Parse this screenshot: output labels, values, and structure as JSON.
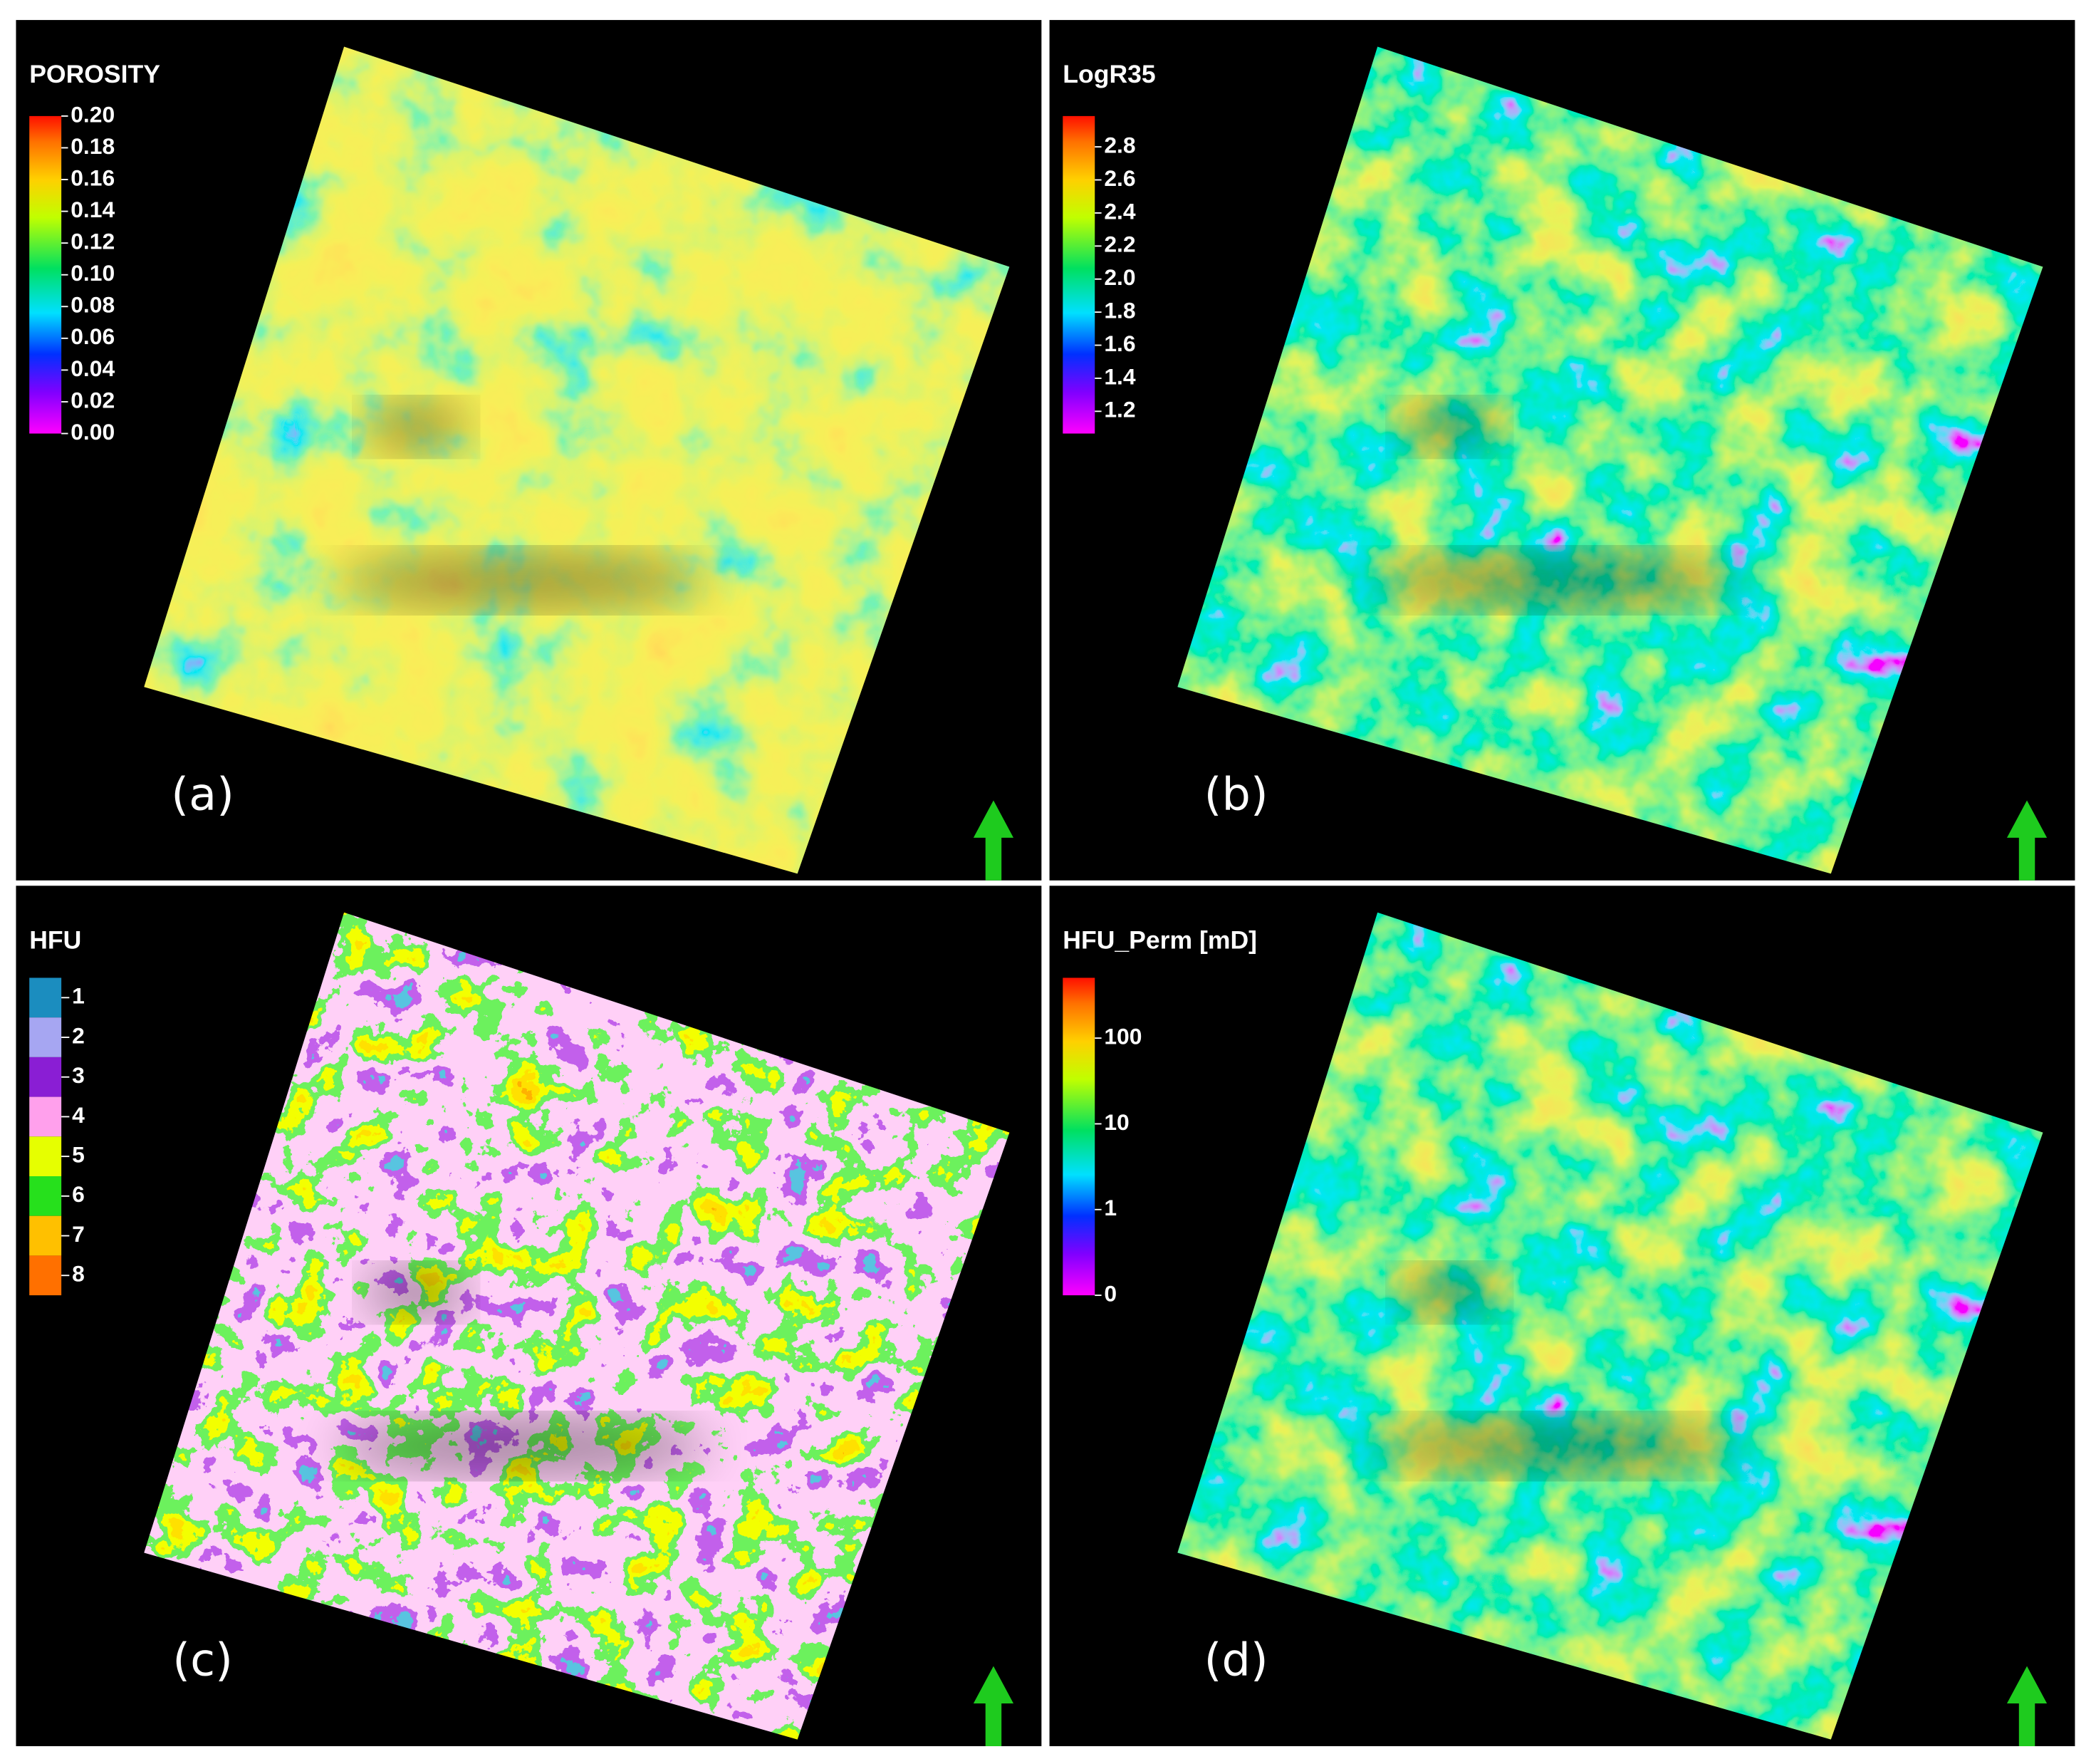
{
  "panels": [
    {
      "title": "POROSITY",
      "label": "(a)",
      "ticks": [
        "0.20",
        "0.18",
        "0.16",
        "0.14",
        "0.12",
        "0.10",
        "0.08",
        "0.06",
        "0.04",
        "0.02",
        "0.00"
      ]
    },
    {
      "title": "LogR35",
      "label": "(b)",
      "ticks": [
        "2.8",
        "2.6",
        "2.4",
        "2.2",
        "2.0",
        "1.8",
        "1.6",
        "1.4",
        "1.2"
      ]
    },
    {
      "title": "HFU",
      "label": "(c)",
      "legend": [
        {
          "label": "1",
          "color": "#1b8dbf"
        },
        {
          "label": "2",
          "color": "#a6a6f2"
        },
        {
          "label": "3",
          "color": "#8a1ed4"
        },
        {
          "label": "4",
          "color": "#ffa0ec"
        },
        {
          "label": "5",
          "color": "#e6ff00"
        },
        {
          "label": "6",
          "color": "#26e01c"
        },
        {
          "label": "7",
          "color": "#ffc000"
        },
        {
          "label": "8",
          "color": "#ff7000"
        }
      ]
    },
    {
      "title": "HFU_Perm [mD]",
      "label": "(d)",
      "ticks": [
        "100",
        "10",
        "1",
        "0"
      ]
    }
  ]
}
